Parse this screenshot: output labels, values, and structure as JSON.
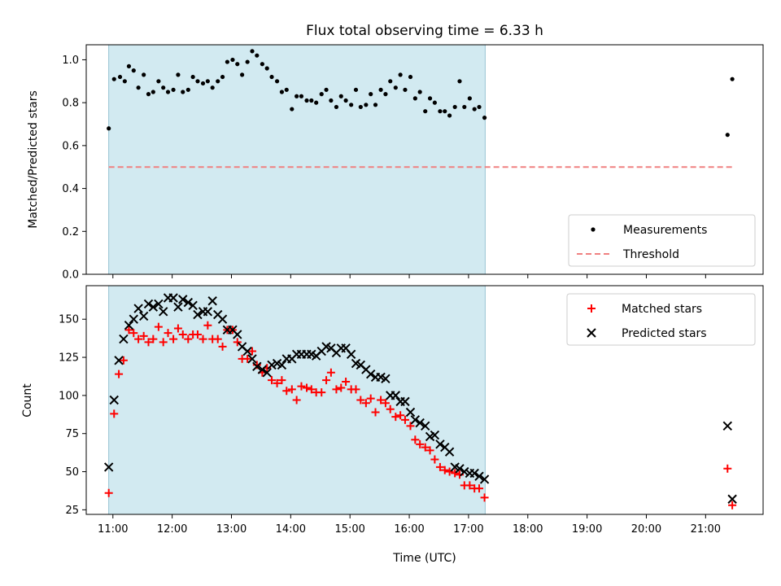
{
  "chart_data": [
    {
      "type": "scatter",
      "title": "Flux total observing time = 6.33 h",
      "xlabel": "",
      "ylabel": "Matched/Predicted stars",
      "ylim": [
        0,
        1.07
      ],
      "yticks": [
        0.0,
        0.2,
        0.4,
        0.6,
        0.8,
        1.0
      ],
      "ytick_labels": [
        "0.0",
        "0.2",
        "0.4",
        "0.6",
        "0.8",
        "1.0"
      ],
      "xlim": [
        10.55,
        21.97
      ],
      "shaded_span": [
        10.93,
        17.28
      ],
      "shaded_color": "#add8e6",
      "legend_position": "lower right",
      "series": [
        {
          "name": "Measurements",
          "marker": "dot",
          "color": "#000000",
          "points": [
            [
              10.93,
              0.68
            ],
            [
              11.02,
              0.91
            ],
            [
              11.12,
              0.92
            ],
            [
              11.2,
              0.9
            ],
            [
              11.27,
              0.97
            ],
            [
              11.35,
              0.95
            ],
            [
              11.43,
              0.87
            ],
            [
              11.52,
              0.93
            ],
            [
              11.6,
              0.84
            ],
            [
              11.68,
              0.85
            ],
            [
              11.77,
              0.9
            ],
            [
              11.85,
              0.87
            ],
            [
              11.93,
              0.85
            ],
            [
              12.02,
              0.86
            ],
            [
              12.1,
              0.93
            ],
            [
              12.18,
              0.85
            ],
            [
              12.27,
              0.86
            ],
            [
              12.35,
              0.92
            ],
            [
              12.43,
              0.9
            ],
            [
              12.52,
              0.89
            ],
            [
              12.6,
              0.9
            ],
            [
              12.68,
              0.87
            ],
            [
              12.77,
              0.9
            ],
            [
              12.85,
              0.92
            ],
            [
              12.93,
              0.99
            ],
            [
              13.02,
              1.0
            ],
            [
              13.1,
              0.98
            ],
            [
              13.18,
              0.93
            ],
            [
              13.27,
              0.99
            ],
            [
              13.35,
              1.04
            ],
            [
              13.43,
              1.02
            ],
            [
              13.52,
              0.98
            ],
            [
              13.6,
              0.96
            ],
            [
              13.68,
              0.92
            ],
            [
              13.77,
              0.9
            ],
            [
              13.85,
              0.85
            ],
            [
              13.93,
              0.86
            ],
            [
              14.02,
              0.77
            ],
            [
              14.1,
              0.83
            ],
            [
              14.18,
              0.83
            ],
            [
              14.27,
              0.81
            ],
            [
              14.35,
              0.81
            ],
            [
              14.43,
              0.8
            ],
            [
              14.52,
              0.84
            ],
            [
              14.6,
              0.86
            ],
            [
              14.68,
              0.81
            ],
            [
              14.77,
              0.78
            ],
            [
              14.85,
              0.83
            ],
            [
              14.93,
              0.81
            ],
            [
              15.02,
              0.79
            ],
            [
              15.1,
              0.86
            ],
            [
              15.18,
              0.78
            ],
            [
              15.27,
              0.79
            ],
            [
              15.35,
              0.84
            ],
            [
              15.43,
              0.79
            ],
            [
              15.52,
              0.86
            ],
            [
              15.6,
              0.84
            ],
            [
              15.68,
              0.9
            ],
            [
              15.77,
              0.87
            ],
            [
              15.85,
              0.93
            ],
            [
              15.93,
              0.86
            ],
            [
              16.02,
              0.92
            ],
            [
              16.1,
              0.82
            ],
            [
              16.18,
              0.85
            ],
            [
              16.27,
              0.76
            ],
            [
              16.35,
              0.82
            ],
            [
              16.43,
              0.8
            ],
            [
              16.52,
              0.76
            ],
            [
              16.6,
              0.76
            ],
            [
              16.68,
              0.74
            ],
            [
              16.77,
              0.78
            ],
            [
              16.85,
              0.9
            ],
            [
              16.93,
              0.78
            ],
            [
              17.02,
              0.82
            ],
            [
              17.1,
              0.77
            ],
            [
              17.18,
              0.78
            ],
            [
              17.27,
              0.73
            ],
            [
              21.37,
              0.65
            ],
            [
              21.45,
              0.91
            ]
          ]
        },
        {
          "name": "Threshold",
          "marker": "dashed-line",
          "color": "#f08080",
          "x": [
            10.93,
            21.45
          ],
          "y": [
            0.5,
            0.5
          ]
        }
      ]
    },
    {
      "type": "scatter",
      "title": "",
      "xlabel": "Time (UTC)",
      "ylabel": "Count",
      "ylim": [
        22,
        172
      ],
      "yticks": [
        25,
        50,
        75,
        100,
        125,
        150
      ],
      "ytick_labels": [
        "25",
        "50",
        "75",
        "100",
        "125",
        "150"
      ],
      "xlim": [
        10.55,
        21.97
      ],
      "xticks": [
        11,
        12,
        13,
        14,
        15,
        16,
        17,
        18,
        19,
        20,
        21
      ],
      "xtick_labels": [
        "11:00",
        "12:00",
        "13:00",
        "14:00",
        "15:00",
        "16:00",
        "17:00",
        "18:00",
        "19:00",
        "20:00",
        "21:00"
      ],
      "shaded_span": [
        10.93,
        17.28
      ],
      "shaded_color": "#add8e6",
      "legend_position": "upper right",
      "series": [
        {
          "name": "Matched stars",
          "marker": "plus",
          "color": "#ff0000",
          "points": [
            [
              10.93,
              36
            ],
            [
              11.02,
              88
            ],
            [
              11.1,
              114
            ],
            [
              11.18,
              123
            ],
            [
              11.27,
              143
            ],
            [
              11.35,
              141
            ],
            [
              11.43,
              137
            ],
            [
              11.52,
              139
            ],
            [
              11.6,
              135
            ],
            [
              11.68,
              137
            ],
            [
              11.77,
              145
            ],
            [
              11.85,
              135
            ],
            [
              11.93,
              141
            ],
            [
              12.02,
              137
            ],
            [
              12.1,
              144
            ],
            [
              12.18,
              140
            ],
            [
              12.27,
              137
            ],
            [
              12.35,
              140
            ],
            [
              12.43,
              140
            ],
            [
              12.52,
              137
            ],
            [
              12.6,
              146
            ],
            [
              12.68,
              137
            ],
            [
              12.77,
              137
            ],
            [
              12.85,
              132
            ],
            [
              12.93,
              143
            ],
            [
              13.02,
              143
            ],
            [
              13.1,
              135
            ],
            [
              13.18,
              124
            ],
            [
              13.27,
              124
            ],
            [
              13.35,
              129
            ],
            [
              13.43,
              120
            ],
            [
              13.52,
              115
            ],
            [
              13.6,
              118
            ],
            [
              13.68,
              110
            ],
            [
              13.77,
              108
            ],
            [
              13.85,
              110
            ],
            [
              13.93,
              103
            ],
            [
              14.02,
              104
            ],
            [
              14.1,
              97
            ],
            [
              14.18,
              106
            ],
            [
              14.27,
              105
            ],
            [
              14.35,
              104
            ],
            [
              14.43,
              102
            ],
            [
              14.52,
              102
            ],
            [
              14.6,
              110
            ],
            [
              14.68,
              115
            ],
            [
              14.77,
              104
            ],
            [
              14.85,
              105
            ],
            [
              14.93,
              109
            ],
            [
              15.02,
              104
            ],
            [
              15.1,
              104
            ],
            [
              15.18,
              97
            ],
            [
              15.27,
              95
            ],
            [
              15.35,
              98
            ],
            [
              15.43,
              89
            ],
            [
              15.52,
              97
            ],
            [
              15.6,
              95
            ],
            [
              15.68,
              91
            ],
            [
              15.77,
              86
            ],
            [
              15.85,
              87
            ],
            [
              15.93,
              84
            ],
            [
              16.02,
              80
            ],
            [
              16.1,
              71
            ],
            [
              16.18,
              68
            ],
            [
              16.27,
              66
            ],
            [
              16.35,
              64
            ],
            [
              16.43,
              58
            ],
            [
              16.52,
              53
            ],
            [
              16.6,
              51
            ],
            [
              16.68,
              50
            ],
            [
              16.77,
              49
            ],
            [
              16.85,
              48
            ],
            [
              16.93,
              41
            ],
            [
              17.02,
              41
            ],
            [
              17.1,
              39
            ],
            [
              17.18,
              39
            ],
            [
              17.27,
              33
            ],
            [
              21.37,
              52
            ],
            [
              21.45,
              28
            ]
          ]
        },
        {
          "name": "Predicted stars",
          "marker": "x",
          "color": "#000000",
          "points": [
            [
              10.93,
              53
            ],
            [
              11.02,
              97
            ],
            [
              11.1,
              123
            ],
            [
              11.18,
              137
            ],
            [
              11.27,
              146
            ],
            [
              11.35,
              150
            ],
            [
              11.43,
              157
            ],
            [
              11.52,
              152
            ],
            [
              11.6,
              160
            ],
            [
              11.68,
              158
            ],
            [
              11.77,
              160
            ],
            [
              11.85,
              155
            ],
            [
              11.93,
              164
            ],
            [
              12.02,
              164
            ],
            [
              12.1,
              158
            ],
            [
              12.18,
              163
            ],
            [
              12.27,
              161
            ],
            [
              12.35,
              159
            ],
            [
              12.43,
              153
            ],
            [
              12.52,
              155
            ],
            [
              12.6,
              155
            ],
            [
              12.68,
              162
            ],
            [
              12.77,
              153
            ],
            [
              12.85,
              150
            ],
            [
              12.93,
              143
            ],
            [
              13.02,
              143
            ],
            [
              13.1,
              140
            ],
            [
              13.18,
              132
            ],
            [
              13.27,
              129
            ],
            [
              13.35,
              124
            ],
            [
              13.43,
              119
            ],
            [
              13.52,
              117
            ],
            [
              13.6,
              115
            ],
            [
              13.68,
              120
            ],
            [
              13.77,
              121
            ],
            [
              13.85,
              120
            ],
            [
              13.93,
              124
            ],
            [
              14.02,
              124
            ],
            [
              14.1,
              127
            ],
            [
              14.18,
              127
            ],
            [
              14.27,
              127
            ],
            [
              14.35,
              127
            ],
            [
              14.43,
              126
            ],
            [
              14.52,
              129
            ],
            [
              14.6,
              132
            ],
            [
              14.68,
              131
            ],
            [
              14.77,
              128
            ],
            [
              14.85,
              131
            ],
            [
              14.93,
              131
            ],
            [
              15.02,
              127
            ],
            [
              15.1,
              121
            ],
            [
              15.18,
              120
            ],
            [
              15.27,
              117
            ],
            [
              15.35,
              114
            ],
            [
              15.43,
              112
            ],
            [
              15.52,
              112
            ],
            [
              15.6,
              111
            ],
            [
              15.68,
              100
            ],
            [
              15.77,
              100
            ],
            [
              15.85,
              96
            ],
            [
              15.93,
              96
            ],
            [
              16.02,
              89
            ],
            [
              16.1,
              84
            ],
            [
              16.18,
              82
            ],
            [
              16.27,
              80
            ],
            [
              16.35,
              73
            ],
            [
              16.43,
              74
            ],
            [
              16.52,
              68
            ],
            [
              16.6,
              66
            ],
            [
              16.68,
              63
            ],
            [
              16.77,
              53
            ],
            [
              16.85,
              52
            ],
            [
              16.93,
              50
            ],
            [
              17.02,
              49
            ],
            [
              17.1,
              49
            ],
            [
              17.18,
              47
            ],
            [
              17.27,
              45
            ],
            [
              21.37,
              80
            ],
            [
              21.45,
              32
            ]
          ]
        }
      ]
    }
  ]
}
